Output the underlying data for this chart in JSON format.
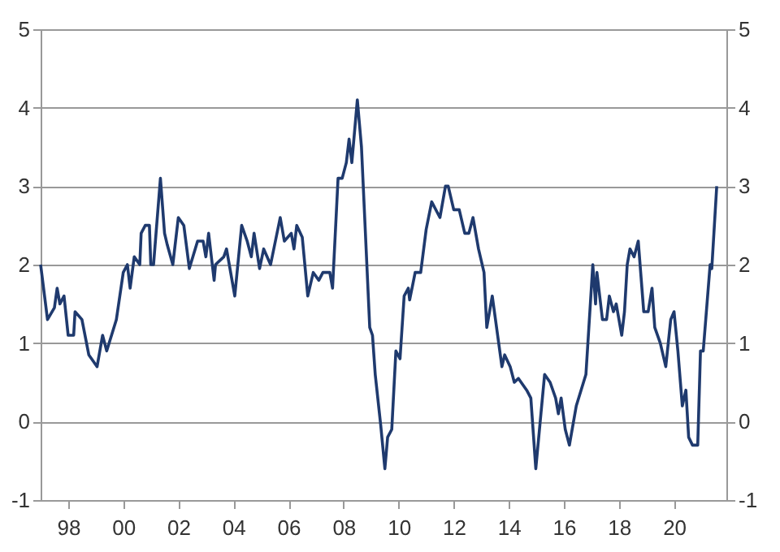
{
  "chart_data": {
    "type": "line",
    "x": [
      1997.0,
      1997.25,
      1997.5,
      1997.6,
      1997.7,
      1997.85,
      1998.0,
      1998.2,
      1998.25,
      1998.5,
      1998.75,
      1998.85,
      1999.05,
      1999.25,
      1999.4,
      1999.75,
      2000.0,
      2000.15,
      2000.25,
      2000.4,
      2000.6,
      2000.65,
      2000.8,
      2000.95,
      2001.0,
      2001.1,
      2001.35,
      2001.5,
      2001.6,
      2001.8,
      2002.0,
      2002.2,
      2002.4,
      2002.7,
      2002.9,
      2003.0,
      2003.1,
      2003.3,
      2003.35,
      2003.65,
      2003.75,
      2004.05,
      2004.3,
      2004.5,
      2004.65,
      2004.75,
      2004.95,
      2005.1,
      2005.35,
      2005.7,
      2005.85,
      2006.1,
      2006.2,
      2006.3,
      2006.5,
      2006.7,
      2006.9,
      2007.1,
      2007.25,
      2007.5,
      2007.6,
      2007.8,
      2007.95,
      2008.1,
      2008.2,
      2008.3,
      2008.5,
      2008.65,
      2008.95,
      2009.05,
      2009.15,
      2009.35,
      2009.5,
      2009.6,
      2009.75,
      2009.9,
      2010.05,
      2010.2,
      2010.35,
      2010.4,
      2010.6,
      2010.8,
      2011.0,
      2011.2,
      2011.5,
      2011.7,
      2011.8,
      2012.0,
      2012.2,
      2012.4,
      2012.55,
      2012.7,
      2012.9,
      2013.1,
      2013.2,
      2013.4,
      2013.75,
      2013.85,
      2014.05,
      2014.2,
      2014.35,
      2014.65,
      2014.8,
      2014.98,
      2015.3,
      2015.5,
      2015.7,
      2015.8,
      2015.9,
      2016.05,
      2016.2,
      2016.45,
      2016.8,
      2017.05,
      2017.15,
      2017.2,
      2017.4,
      2017.55,
      2017.65,
      2017.8,
      2017.9,
      2018.1,
      2018.2,
      2018.3,
      2018.4,
      2018.55,
      2018.7,
      2018.9,
      2019.06,
      2019.2,
      2019.3,
      2019.5,
      2019.7,
      2019.88,
      2020.0,
      2020.14,
      2020.3,
      2020.43,
      2020.53,
      2020.67,
      2020.86,
      2020.96,
      2021.06,
      2021.31,
      2021.37,
      2021.55
    ],
    "series": [
      {
        "color": "#1f3a6e",
        "values": [
          2.0,
          1.3,
          1.45,
          1.7,
          1.5,
          1.6,
          1.1,
          1.1,
          1.4,
          1.3,
          0.85,
          0.8,
          0.7,
          1.1,
          0.9,
          1.3,
          1.9,
          2.0,
          1.7,
          2.1,
          2.0,
          2.4,
          2.5,
          2.5,
          2.0,
          2.0,
          3.1,
          2.4,
          2.25,
          2.0,
          2.6,
          2.5,
          1.95,
          2.3,
          2.3,
          2.1,
          2.4,
          1.8,
          2.0,
          2.1,
          2.2,
          1.6,
          2.5,
          2.3,
          2.1,
          2.4,
          1.95,
          2.2,
          2.0,
          2.6,
          2.3,
          2.4,
          2.2,
          2.5,
          2.35,
          1.6,
          1.9,
          1.8,
          1.9,
          1.9,
          1.7,
          3.1,
          3.1,
          3.3,
          3.6,
          3.3,
          4.1,
          3.5,
          1.2,
          1.1,
          0.6,
          -0.05,
          -0.6,
          -0.2,
          -0.1,
          0.9,
          0.8,
          1.6,
          1.7,
          1.55,
          1.9,
          1.9,
          2.45,
          2.8,
          2.6,
          3.0,
          3.0,
          2.7,
          2.7,
          2.4,
          2.4,
          2.6,
          2.2,
          1.9,
          1.2,
          1.6,
          0.7,
          0.85,
          0.7,
          0.5,
          0.55,
          0.4,
          0.3,
          -0.6,
          0.6,
          0.5,
          0.3,
          0.1,
          0.3,
          -0.1,
          -0.3,
          0.2,
          0.6,
          2.0,
          1.5,
          1.9,
          1.3,
          1.3,
          1.6,
          1.4,
          1.5,
          1.1,
          1.4,
          2.0,
          2.2,
          2.1,
          2.3,
          1.4,
          1.4,
          1.7,
          1.2,
          1.0,
          0.7,
          1.3,
          1.4,
          0.9,
          0.2,
          0.4,
          -0.2,
          -0.3,
          -0.3,
          0.9,
          0.9,
          2.0,
          1.95,
          3.0
        ]
      }
    ],
    "xlim": [
      1997.0,
      2021.9
    ],
    "xticks": [
      {
        "value": 1998,
        "label": "98"
      },
      {
        "value": 2000,
        "label": "00"
      },
      {
        "value": 2002,
        "label": "02"
      },
      {
        "value": 2004,
        "label": "04"
      },
      {
        "value": 2006,
        "label": "06"
      },
      {
        "value": 2008,
        "label": "08"
      },
      {
        "value": 2010,
        "label": "10"
      },
      {
        "value": 2012,
        "label": "12"
      },
      {
        "value": 2014,
        "label": "14"
      },
      {
        "value": 2016,
        "label": "16"
      },
      {
        "value": 2018,
        "label": "18"
      },
      {
        "value": 2020,
        "label": "20"
      }
    ],
    "ylim": [
      -1,
      5
    ],
    "yticks": [
      -1,
      0,
      1,
      2,
      3,
      4,
      5
    ],
    "y2lim": [
      -1,
      5
    ],
    "y2ticks": [
      -1,
      0,
      1,
      2,
      3,
      4,
      5
    ],
    "grid": "y",
    "line_style": "solid",
    "marker": "none"
  }
}
